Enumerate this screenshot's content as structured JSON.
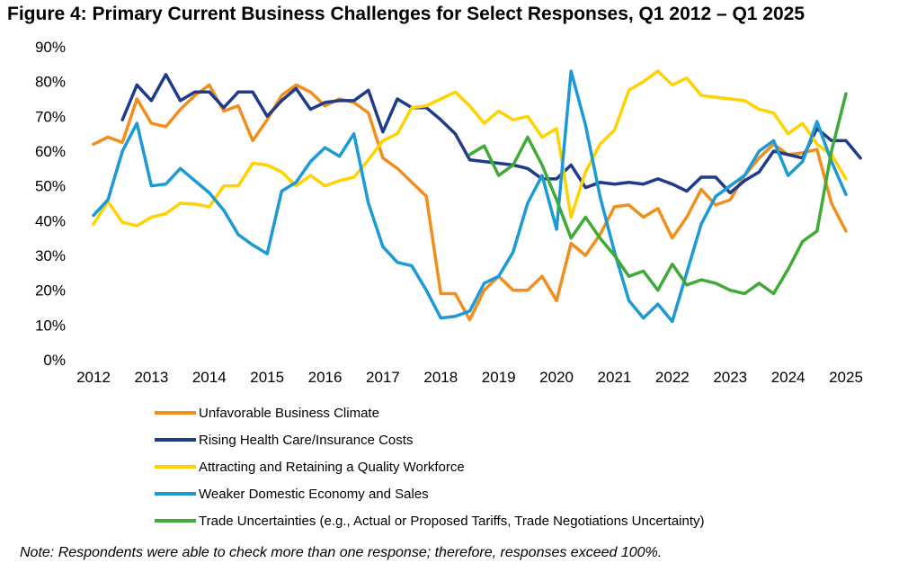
{
  "figure": {
    "title": "Figure 4: Primary Current Business Challenges for Select Responses, Q1 2012 – Q1 2025",
    "note": "Note: Respondents were able to check more than one response; therefore, responses exceed 100%."
  },
  "chart_data": {
    "type": "line",
    "title": "Figure 4: Primary Current Business Challenges for Select Responses, Q1 2012 – Q1 2025",
    "xlabel": "",
    "ylabel": "",
    "xlim": [
      2012,
      2025
    ],
    "ylim": [
      0,
      90
    ],
    "x_ticks": [
      "2012",
      "2013",
      "2014",
      "2015",
      "2016",
      "2017",
      "2018",
      "2019",
      "2020",
      "2021",
      "2022",
      "2023",
      "2024",
      "2025"
    ],
    "y_ticks": [
      "0%",
      "10%",
      "20%",
      "30%",
      "40%",
      "50%",
      "60%",
      "70%",
      "80%",
      "90%"
    ],
    "grid": false,
    "legend_position": "bottom",
    "series": [
      {
        "name": "Unfavorable Business Climate",
        "color": "#f28e1c",
        "start": 2012,
        "values": [
          62,
          64,
          62.5,
          75,
          68,
          67,
          72,
          76,
          79,
          71.5,
          73,
          63,
          69,
          76,
          79,
          77,
          73,
          75,
          74,
          71,
          58,
          55,
          51,
          47,
          19,
          19,
          11.5,
          20,
          24,
          20,
          20,
          24,
          17,
          33.5,
          30,
          36,
          44,
          44.5,
          41,
          43.5,
          35,
          41,
          49,
          44.5,
          46,
          53,
          58,
          62,
          59,
          59.5,
          60.5,
          45,
          37
        ]
      },
      {
        "name": "Rising Health Care/Insurance Costs",
        "color": "#1f3c8c",
        "start": 2012.5,
        "values": [
          69,
          79,
          74.5,
          82,
          74.5,
          77,
          77,
          72.5,
          77,
          77,
          70,
          74.5,
          78,
          72,
          74,
          74.5,
          74.5,
          77.5,
          65.5,
          75,
          72.5,
          72.5,
          69,
          65,
          57.5,
          57,
          56.5,
          56,
          55,
          52,
          52,
          56,
          49.5,
          51,
          50.5,
          51,
          50.5,
          52,
          50.5,
          48.5,
          52.5,
          52.5,
          48,
          51.5,
          54,
          60,
          59,
          58,
          66.5,
          63,
          63,
          58
        ]
      },
      {
        "name": "Attracting and Retaining a Quality Workforce",
        "color": "#ffd200",
        "start": 2012,
        "values": [
          39,
          45.5,
          39.5,
          38.5,
          41,
          42,
          45,
          44.8,
          44,
          50,
          50,
          56.5,
          56,
          54,
          50,
          53,
          50,
          51.5,
          52.5,
          57.5,
          63,
          65,
          72.5,
          73,
          75,
          77,
          73,
          68,
          71.5,
          69,
          70,
          64,
          66.5,
          41,
          54,
          62,
          66,
          77.5,
          80,
          83,
          79,
          81,
          76,
          75.5,
          75,
          74.5,
          72,
          71,
          65,
          68,
          62,
          59,
          52
        ]
      },
      {
        "name": "Weaker Domestic Economy and Sales",
        "color": "#1c9ad6",
        "start": 2012,
        "values": [
          41.5,
          46,
          60,
          68,
          50,
          50.5,
          55,
          51.5,
          48,
          43,
          36,
          33,
          30.5,
          48.5,
          51,
          57,
          61,
          58.5,
          65,
          45,
          32.5,
          28,
          27,
          20,
          12,
          12.5,
          14,
          22,
          24,
          31,
          45,
          53,
          37.5,
          83,
          67.5,
          47,
          31,
          17,
          12,
          16,
          11,
          25,
          39,
          47,
          50,
          53,
          60,
          63,
          53,
          57,
          68.5,
          57,
          47.5
        ]
      },
      {
        "name": "Trade Uncertainties (e.g., Actual or Proposed Tariffs, Trade Negotiations Uncertainty)",
        "color": "#3faa35",
        "start": 2018.5,
        "values": [
          59,
          61.5,
          53,
          56,
          64,
          56,
          46,
          35,
          41,
          35,
          30,
          24,
          25.5,
          20,
          27.5,
          21.5,
          23,
          22,
          20,
          19,
          22,
          19,
          26,
          34,
          37,
          60,
          76.5
        ]
      }
    ]
  }
}
